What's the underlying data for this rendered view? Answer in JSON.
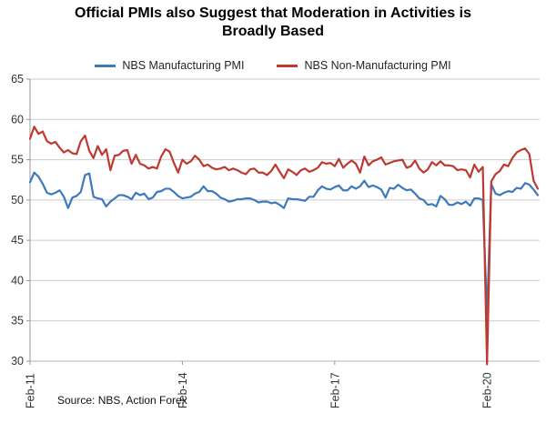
{
  "source": "Source: NBS, Action Forex",
  "chart_data": {
    "type": "line",
    "title": "Official PMIs also Suggest that Moderation in Activities is Broadly Based",
    "xlabel": "",
    "ylabel": "",
    "ylim": [
      30,
      65
    ],
    "y_ticks": [
      65,
      60,
      55,
      50,
      45,
      40,
      35,
      30
    ],
    "grid": true,
    "legend_position": "top",
    "x_frequency": "monthly",
    "n_points": 121,
    "x_tick_labels": [
      "Feb-11",
      "Feb-14",
      "Feb-17",
      "Feb-20"
    ],
    "x_tick_indices": [
      0,
      36,
      72,
      108
    ],
    "series": [
      {
        "name": "NBS Manufacturing PMI",
        "color": "#3E79BC",
        "values": [
          52.2,
          53.4,
          52.9,
          52.0,
          50.9,
          50.7,
          50.9,
          51.2,
          50.4,
          49.0,
          50.3,
          50.5,
          51.0,
          53.1,
          53.3,
          50.4,
          50.2,
          50.1,
          49.2,
          49.8,
          50.2,
          50.6,
          50.6,
          50.4,
          50.1,
          50.9,
          50.6,
          50.8,
          50.1,
          50.3,
          51.0,
          51.1,
          51.4,
          51.4,
          51.0,
          50.5,
          50.2,
          50.3,
          50.4,
          50.8,
          51.0,
          51.7,
          51.1,
          51.1,
          50.8,
          50.3,
          50.1,
          49.8,
          49.9,
          50.1,
          50.1,
          50.2,
          50.2,
          50.0,
          49.7,
          49.8,
          49.8,
          49.6,
          49.7,
          49.4,
          49.0,
          50.2,
          50.1,
          50.1,
          50.0,
          49.9,
          50.4,
          50.4,
          51.2,
          51.7,
          51.4,
          51.3,
          51.6,
          51.8,
          51.2,
          51.2,
          51.7,
          51.4,
          51.7,
          52.4,
          51.6,
          51.8,
          51.6,
          51.3,
          50.3,
          51.5,
          51.4,
          51.9,
          51.5,
          51.2,
          51.3,
          50.8,
          50.2,
          50.0,
          49.4,
          49.5,
          49.2,
          50.5,
          50.1,
          49.4,
          49.4,
          49.7,
          49.5,
          49.8,
          49.3,
          50.2,
          50.2,
          50.0,
          35.7,
          52.0,
          50.8,
          50.6,
          50.9,
          51.1,
          51.0,
          51.5,
          51.4,
          52.1,
          51.9,
          51.3,
          50.6
        ]
      },
      {
        "name": "NBS Non-Manufacturing PMI",
        "color": "#BE3A31",
        "values": [
          57.6,
          59.1,
          58.2,
          58.5,
          57.3,
          57.0,
          57.2,
          56.5,
          55.9,
          56.2,
          55.8,
          55.7,
          57.3,
          58.0,
          56.1,
          55.2,
          56.7,
          55.6,
          56.3,
          53.7,
          55.5,
          55.6,
          56.1,
          56.2,
          54.5,
          55.6,
          54.5,
          54.3,
          53.9,
          54.1,
          53.9,
          55.4,
          56.3,
          56.0,
          54.6,
          53.4,
          55.0,
          54.5,
          54.8,
          55.5,
          55.0,
          54.2,
          54.4,
          54.0,
          53.8,
          53.9,
          54.1,
          53.7,
          53.9,
          53.7,
          53.4,
          53.2,
          53.8,
          53.9,
          53.4,
          53.4,
          53.1,
          53.6,
          54.4,
          53.5,
          52.7,
          53.8,
          53.5,
          53.1,
          53.7,
          53.9,
          53.5,
          53.7,
          54.0,
          54.7,
          54.5,
          54.6,
          54.2,
          55.1,
          54.0,
          54.5,
          54.9,
          54.5,
          53.4,
          55.4,
          54.3,
          54.8,
          55.0,
          55.3,
          54.4,
          54.6,
          54.8,
          54.9,
          55.0,
          54.0,
          54.2,
          54.9,
          53.9,
          53.4,
          53.8,
          54.7,
          54.3,
          54.8,
          54.3,
          54.3,
          54.2,
          53.7,
          53.8,
          53.7,
          52.8,
          54.4,
          53.5,
          54.1,
          29.6,
          52.3,
          53.2,
          53.6,
          54.4,
          54.2,
          55.2,
          55.9,
          56.2,
          56.4,
          55.7,
          52.4,
          51.4
        ]
      }
    ]
  }
}
